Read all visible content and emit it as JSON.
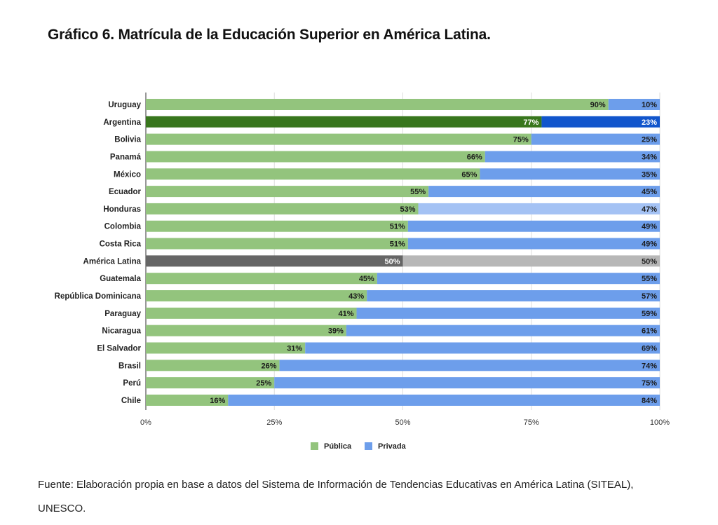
{
  "title": "Gráfico 6. Matrícula de la Educación Superior en América Latina.",
  "source": [
    "Fuente: Elaboración propia en base a datos del Sistema de Información de Tendencias Educativas en América Latina (SITEAL),",
    "UNESCO."
  ],
  "chart_data": {
    "type": "bar",
    "orientation": "horizontal",
    "stacked": "percent",
    "categories": [
      "Uruguay",
      "Argentina",
      "Bolivia",
      "Panamá",
      "México",
      "Ecuador",
      "Honduras",
      "Colombia",
      "Costa Rica",
      "América Latina",
      "Guatemala",
      "República Dominicana",
      "Paraguay",
      "Nicaragua",
      "El Salvador",
      "Brasil",
      "Perú",
      "Chile"
    ],
    "series": [
      {
        "name": "Pública",
        "color": "#93c47d",
        "values": [
          90,
          77,
          75,
          66,
          65,
          55,
          53,
          51,
          51,
          50,
          45,
          43,
          41,
          39,
          31,
          26,
          25,
          16
        ]
      },
      {
        "name": "Privada",
        "color": "#6d9eeb",
        "values": [
          10,
          23,
          25,
          34,
          35,
          45,
          47,
          49,
          49,
          50,
          55,
          57,
          59,
          61,
          69,
          74,
          75,
          84
        ]
      }
    ],
    "highlights": {
      "Argentina": {
        "Pública": "#38761d",
        "Privada": "#1155cc"
      },
      "Honduras": {
        "Privada": "#a4c2f4"
      },
      "América Latina": {
        "Pública": "#666666",
        "Privada": "#b7b7b7"
      }
    },
    "xticks": [
      "0%",
      "25%",
      "50%",
      "75%",
      "100%"
    ],
    "xlim": [
      0,
      100
    ],
    "grid": true,
    "legend": "bottom"
  }
}
